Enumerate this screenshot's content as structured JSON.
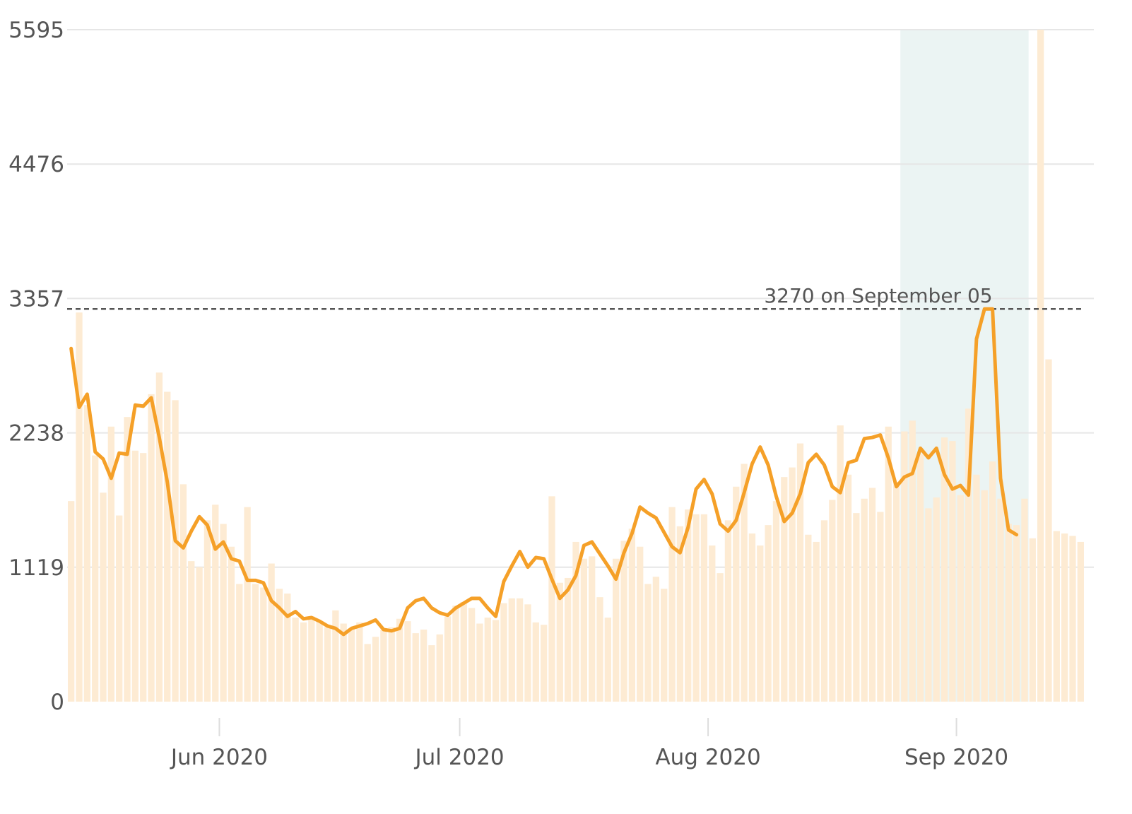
{
  "colors": {
    "background": "#ffffff",
    "grid": "#e6e6e6",
    "bar": "#fdebd3",
    "line": "#f5a028",
    "highlight": "#e2f0ee",
    "annotation_line": "#555555",
    "text": "#555555"
  },
  "chart_data": {
    "type": "bar",
    "title": "",
    "xlabel": "",
    "ylabel": "",
    "x_start": "2020-05-13",
    "ylim": [
      0,
      5595
    ],
    "yticks": [
      "0",
      "1119",
      "2238",
      "3357",
      "4476",
      "5595"
    ],
    "xticks": [
      {
        "label": "Jun 2020",
        "date": "2020-06-01"
      },
      {
        "label": "Jul 2020",
        "date": "2020-07-01"
      },
      {
        "label": "Aug 2020",
        "date": "2020-08-01"
      },
      {
        "label": "Sep 2020",
        "date": "2020-09-01"
      }
    ],
    "grid": true,
    "highlight_range": {
      "from": "2020-08-25",
      "to": "2020-09-09"
    },
    "annotation": {
      "label": "3270 on September 05",
      "value": 3270,
      "date": "2020-09-05"
    },
    "series": [
      {
        "kind": "bar",
        "values": [
          1670,
          3240,
          2470,
          2050,
          1740,
          2290,
          1550,
          2370,
          2090,
          2070,
          2560,
          2740,
          2580,
          2510,
          1810,
          1170,
          1120,
          1510,
          1640,
          1480,
          1290,
          980,
          1620,
          980,
          950,
          1150,
          940,
          900,
          700,
          660,
          710,
          670,
          620,
          760,
          650,
          610,
          660,
          480,
          540,
          600,
          620,
          690,
          670,
          570,
          600,
          470,
          560,
          710,
          800,
          830,
          780,
          650,
          700,
          680,
          820,
          860,
          860,
          810,
          660,
          640,
          1710,
          990,
          1030,
          1330,
          1190,
          1210,
          870,
          700,
          1190,
          1340,
          1440,
          1290,
          980,
          1040,
          940,
          1620,
          1460,
          1600,
          1560,
          1560,
          1300,
          1070,
          1510,
          1790,
          1980,
          1400,
          1300,
          1470,
          1670,
          1870,
          1950,
          2150,
          1390,
          1330,
          1510,
          1680,
          2300,
          1890,
          1570,
          1690,
          1780,
          1580,
          2290,
          1830,
          2250,
          2340,
          2060,
          1610,
          1700,
          2200,
          2170,
          1720,
          2440,
          1890,
          1760,
          2000,
          1690,
          1480,
          1470,
          1690,
          1360,
          5595,
          2850,
          1420,
          1400,
          1380,
          1330
        ]
      },
      {
        "kind": "line",
        "values": [
          2940,
          2450,
          2560,
          2080,
          2020,
          1860,
          2070,
          2060,
          2470,
          2460,
          2530,
          2200,
          1830,
          1340,
          1280,
          1420,
          1540,
          1470,
          1270,
          1330,
          1190,
          1170,
          1010,
          1010,
          990,
          840,
          780,
          710,
          750,
          690,
          700,
          670,
          630,
          610,
          560,
          610,
          630,
          650,
          680,
          600,
          590,
          610,
          780,
          840,
          860,
          780,
          740,
          720,
          780,
          820,
          860,
          860,
          780,
          710,
          1000,
          1130,
          1250,
          1120,
          1200,
          1190,
          1020,
          860,
          930,
          1050,
          1300,
          1330,
          1230,
          1130,
          1020,
          1240,
          1400,
          1620,
          1570,
          1530,
          1410,
          1290,
          1240,
          1450,
          1770,
          1850,
          1730,
          1480,
          1420,
          1510,
          1740,
          1980,
          2120,
          1970,
          1710,
          1500,
          1570,
          1730,
          1990,
          2060,
          1970,
          1790,
          1740,
          1990,
          2010,
          2190,
          2200,
          2220,
          2030,
          1790,
          1870,
          1900,
          2110,
          2030,
          2110,
          1890,
          1770,
          1800,
          1720,
          3020,
          3270,
          3270,
          1860,
          1430,
          1390
        ]
      }
    ]
  }
}
